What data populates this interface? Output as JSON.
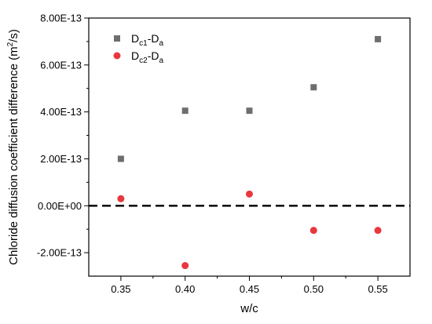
{
  "chart_data": {
    "type": "scatter",
    "xlabel": "w/c",
    "ylabel": "Chloride diffusion coefficient difference (m²/s)",
    "xlim": [
      0.325,
      0.575
    ],
    "ylim": [
      -3e-13,
      8e-13
    ],
    "x_ticks": [
      0.35,
      0.4,
      0.45,
      0.5,
      0.55
    ],
    "x_tick_labels": [
      "0.35",
      "0.40",
      "0.45",
      "0.50",
      "0.55"
    ],
    "y_ticks": [
      -2e-13,
      0,
      2e-13,
      4e-13,
      6e-13,
      8e-13
    ],
    "y_tick_labels": [
      "-2.00E-13",
      "0.00E+00",
      "2.00E-13",
      "4.00E-13",
      "6.00E-13",
      "8.00E-13"
    ],
    "reference_line": {
      "y": 0,
      "style": "dashed",
      "color": "#000000"
    },
    "legend_position": "top-left",
    "grid": false,
    "series": [
      {
        "name": "Dc1-Da",
        "marker": "square",
        "color": "#6e6e6e",
        "x": [
          0.35,
          0.4,
          0.45,
          0.5,
          0.55
        ],
        "y": [
          2e-13,
          4.05e-13,
          4.05e-13,
          5.05e-13,
          7.1e-13
        ]
      },
      {
        "name": "Dc2-Da",
        "marker": "circle",
        "color": "#e8383d",
        "x": [
          0.35,
          0.4,
          0.45,
          0.5,
          0.55
        ],
        "y": [
          3e-14,
          -2.55e-13,
          5e-14,
          -1.05e-13,
          -1.05e-13
        ]
      }
    ]
  }
}
